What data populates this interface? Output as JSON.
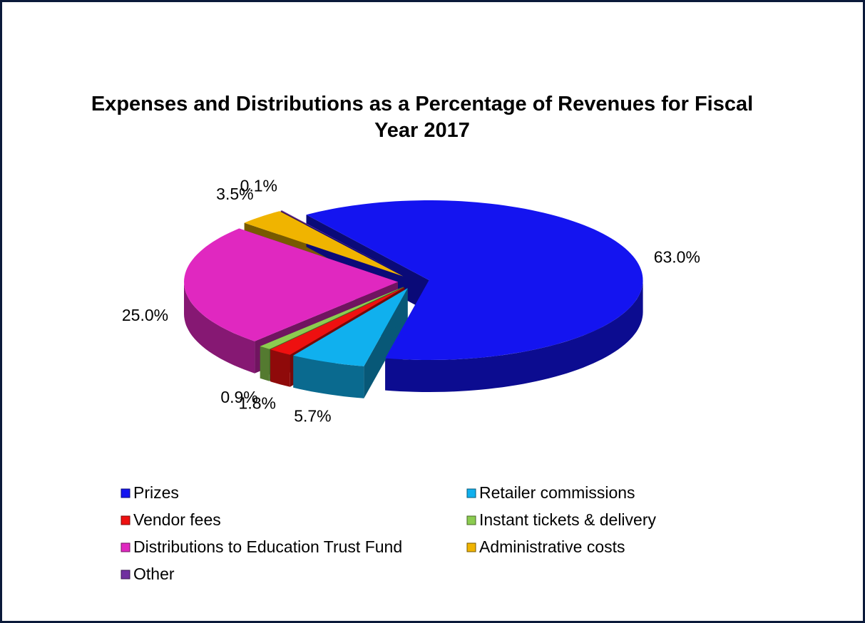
{
  "chart_data": {
    "type": "pie",
    "title": "Expenses and Distributions as a Percentage of Revenues for Fiscal Year 2017",
    "categories": [
      "Prizes",
      "Retailer commissions",
      "Vendor fees",
      "Instant tickets & delivery",
      "Distributions to Education Trust Fund",
      "Administrative costs",
      "Other"
    ],
    "values": [
      63.0,
      5.7,
      1.8,
      0.9,
      25.0,
      3.5,
      0.1
    ],
    "value_labels": [
      "63.0%",
      "5.7%",
      "1.8%",
      "0.9%",
      "25.0%",
      "3.5%",
      "0.1%"
    ],
    "colors": [
      "#1414f0",
      "#10b0ee",
      "#ee1010",
      "#8ccc50",
      "#e028c0",
      "#f0b400",
      "#7030a0"
    ]
  }
}
